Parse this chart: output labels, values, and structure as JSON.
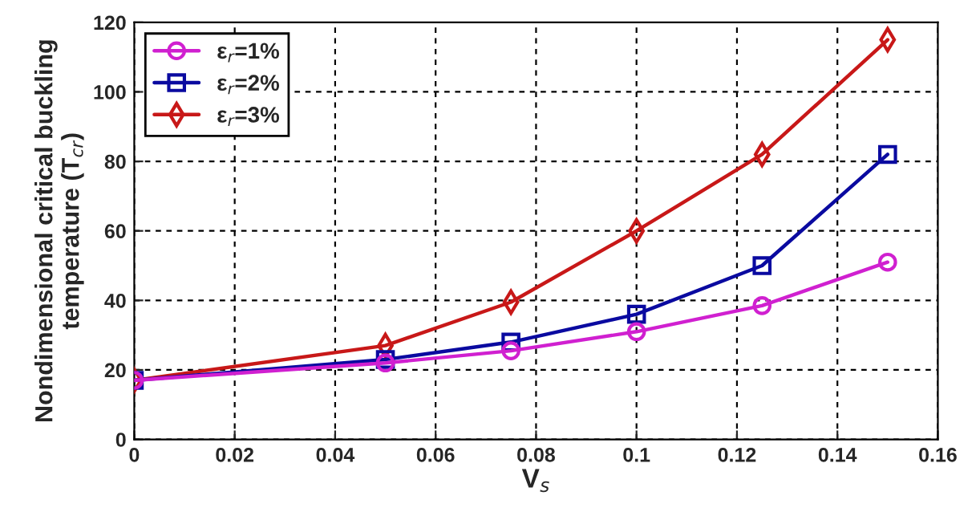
{
  "chart_data": {
    "type": "line",
    "xlabel": "V$_{s}$",
    "ylabel": "Nondimensional critical buckling\ntemperature (T$_{cr}$)",
    "x": [
      0,
      0.05,
      0.075,
      0.1,
      0.125,
      0.15
    ],
    "series": [
      {
        "name": "ε$_{r}$=1%",
        "color": "#d020d0",
        "marker": "circle",
        "values": [
          17,
          22,
          25.5,
          31,
          38.5,
          51
        ]
      },
      {
        "name": "ε$_{r}$=2%",
        "color": "#0a0aa0",
        "marker": "square",
        "values": [
          17,
          23,
          28,
          36,
          50,
          82
        ]
      },
      {
        "name": "ε$_{r}$=3%",
        "color": "#c81818",
        "marker": "diamond",
        "values": [
          17,
          27,
          39.5,
          60,
          82,
          115
        ]
      }
    ],
    "xlim": [
      0,
      0.16
    ],
    "xticks": [
      0,
      0.02,
      0.04,
      0.06,
      0.08,
      0.1,
      0.12,
      0.14,
      0.16
    ],
    "ylim": [
      0,
      120
    ],
    "yticks": [
      0,
      20,
      40,
      60,
      80,
      100,
      120
    ],
    "grid": true,
    "legend": "top left",
    "line_style": "solid"
  }
}
